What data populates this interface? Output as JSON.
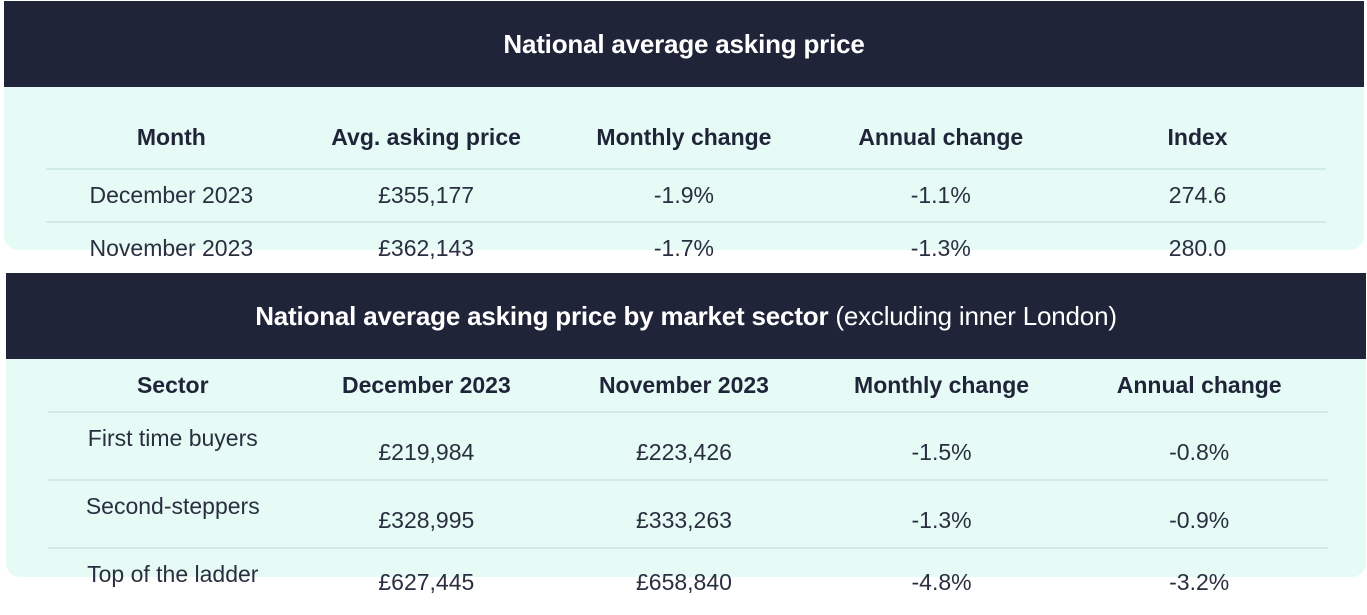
{
  "table1": {
    "title": "National average asking price",
    "headers": [
      "Month",
      "Avg. asking price",
      "Monthly change",
      "Annual change",
      "Index"
    ],
    "rows": [
      [
        "December 2023",
        "£355,177",
        "-1.9%",
        "-1.1%",
        "274.6"
      ],
      [
        "November 2023",
        "£362,143",
        "-1.7%",
        "-1.3%",
        "280.0"
      ]
    ]
  },
  "table2": {
    "title": "National average asking price by market sector",
    "subtitle": "(excluding inner London)",
    "headers": [
      "Sector",
      "December 2023",
      "November 2023",
      "Monthly change",
      "Annual change"
    ],
    "rows": [
      [
        "First time buyers",
        "£219,984",
        "£223,426",
        "-1.5%",
        "-0.8%"
      ],
      [
        "Second-steppers",
        "£328,995",
        "£333,263",
        "-1.3%",
        "-0.9%"
      ],
      [
        "Top of the ladder",
        "£627,445",
        "£658,840",
        "-4.8%",
        "-3.2%"
      ]
    ]
  },
  "colors": {
    "header_bg": "#1f2438",
    "card_bg": "#e6fbf5",
    "divider": "#d0ece4"
  }
}
